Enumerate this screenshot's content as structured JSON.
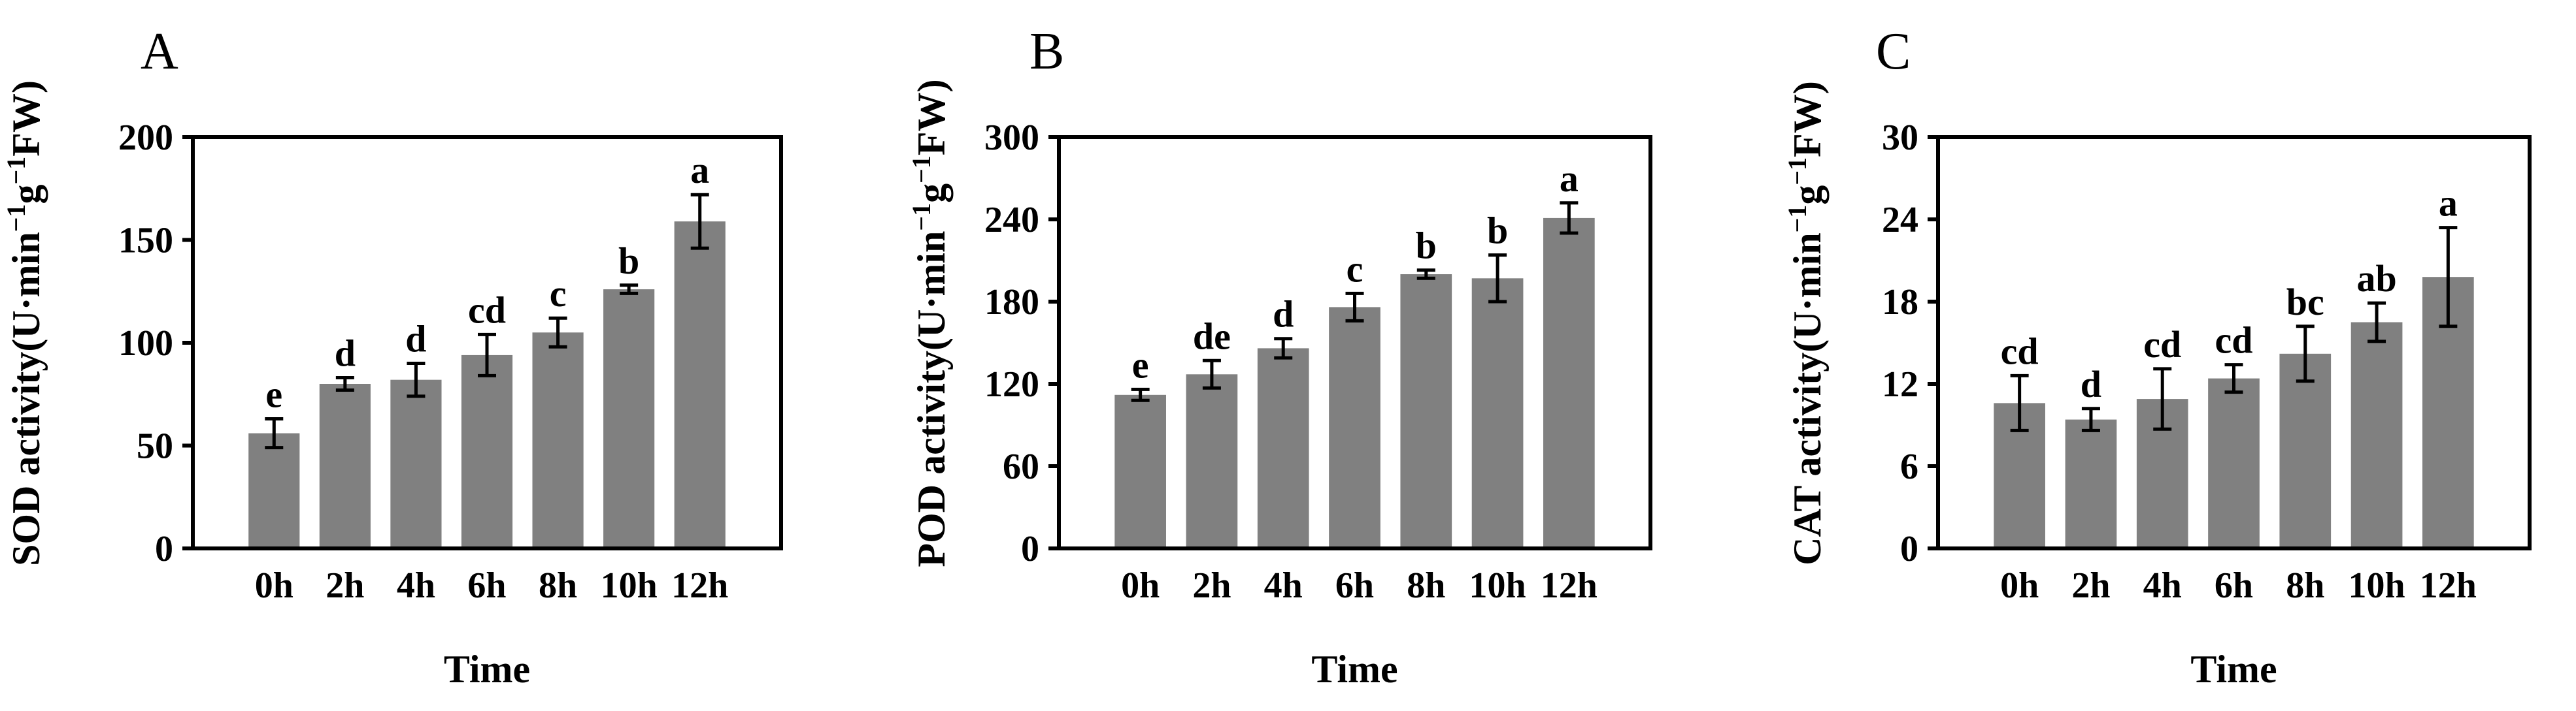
{
  "bar_color": "#808080",
  "axis_color": "#000000",
  "chart_data": [
    {
      "type": "bar",
      "panel": "A",
      "xlabel": "Time",
      "ylabel_prefix": "SOD activity(U·min",
      "ylabel_sup1": "−1",
      "ylabel_mid": "g",
      "ylabel_sup2": "−1",
      "ylabel_suffix": "FW)",
      "ylim": [
        0,
        200
      ],
      "yticks": [
        "0",
        "50",
        "100",
        "150",
        "200"
      ],
      "yticks_values": [
        0,
        50,
        100,
        150,
        200
      ],
      "categories": [
        "0h",
        "2h",
        "4h",
        "6h",
        "8h",
        "10h",
        "12h"
      ],
      "values": [
        56,
        80,
        82,
        94,
        105,
        126,
        159
      ],
      "errors": [
        7,
        3,
        8,
        10,
        7,
        2,
        13
      ],
      "significance": [
        "e",
        "d",
        "d",
        "cd",
        "c",
        "b",
        "a"
      ]
    },
    {
      "type": "bar",
      "panel": "B",
      "xlabel": "Time",
      "ylabel_prefix": "POD activity(U·min",
      "ylabel_sup1": "−1",
      "ylabel_mid": "g",
      "ylabel_sup2": "−1",
      "ylabel_suffix": "FW)",
      "ylim": [
        0,
        300
      ],
      "yticks": [
        "0",
        "60",
        "120",
        "180",
        "240",
        "300"
      ],
      "yticks_values": [
        0,
        60,
        120,
        180,
        240,
        300
      ],
      "categories": [
        "0h",
        "2h",
        "4h",
        "6h",
        "8h",
        "10h",
        "12h"
      ],
      "values": [
        112,
        127,
        146,
        176,
        200,
        197,
        241
      ],
      "errors": [
        4,
        10,
        7,
        10,
        3,
        17,
        11
      ],
      "significance": [
        "e",
        "de",
        "d",
        "c",
        "b",
        "b",
        "a"
      ]
    },
    {
      "type": "bar",
      "panel": "C",
      "xlabel": "Time",
      "ylabel_prefix": "CAT activity(U·min",
      "ylabel_sup1": "−1",
      "ylabel_mid": "g",
      "ylabel_sup2": "−1",
      "ylabel_suffix": "FW)",
      "ylim": [
        0,
        30
      ],
      "yticks": [
        "0",
        "6",
        "12",
        "18",
        "24",
        "30"
      ],
      "yticks_values": [
        0,
        6,
        12,
        18,
        24,
        30
      ],
      "categories": [
        "0h",
        "2h",
        "4h",
        "6h",
        "8h",
        "10h",
        "12h"
      ],
      "values": [
        10.6,
        9.4,
        10.9,
        12.4,
        14.2,
        16.5,
        19.8
      ],
      "errors": [
        2.0,
        0.8,
        2.2,
        1.0,
        2.0,
        1.4,
        3.6
      ],
      "significance": [
        "cd",
        "d",
        "cd",
        "cd",
        "bc",
        "ab",
        "a"
      ]
    }
  ]
}
